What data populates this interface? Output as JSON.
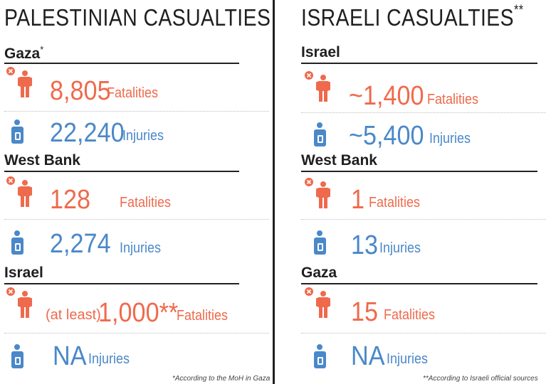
{
  "left": {
    "title": "PALESTINIAN CASUALTIES",
    "sections": [
      {
        "name": "Gaza",
        "marker": "*",
        "fatalities": "8,805",
        "fatalities_label": "Fatalities",
        "injuries": "22,240",
        "injuries_label": "Injuries"
      },
      {
        "name": "West Bank",
        "fatalities": "128",
        "fatalities_label": "Fatalities",
        "injuries": "2,274",
        "injuries_label": "Injuries"
      },
      {
        "name": "Israel",
        "fatalities_prefix": "(at least)",
        "fatalities": "1,000**",
        "fatalities_label": "Fatalities",
        "injuries": "NA",
        "injuries_label": "Injuries"
      }
    ],
    "footnote": "*According to the MoH in Gaza"
  },
  "right": {
    "title": "ISRAELI CASUALTIES",
    "title_marker": "**",
    "sections": [
      {
        "name": "Israel",
        "fatalities": "~1,400",
        "fatalities_label": "Fatalities",
        "injuries": "~5,400",
        "injuries_label": "Injuries"
      },
      {
        "name": "West Bank",
        "fatalities": "1",
        "fatalities_label": "Fatalities",
        "injuries": "13",
        "injuries_label": "Injuries"
      },
      {
        "name": "Gaza",
        "fatalities": "15",
        "fatalities_label": "Fatalities",
        "injuries": "NA",
        "injuries_label": "Injuries"
      }
    ],
    "footnote": "**According to Israeli official sources"
  },
  "colors": {
    "fatalities": "#ef6a4c",
    "injuries": "#4a88c9",
    "text": "#1f1f1f"
  },
  "icons": {
    "fatalities": "person-x-icon",
    "injuries": "injured-person-icon"
  }
}
